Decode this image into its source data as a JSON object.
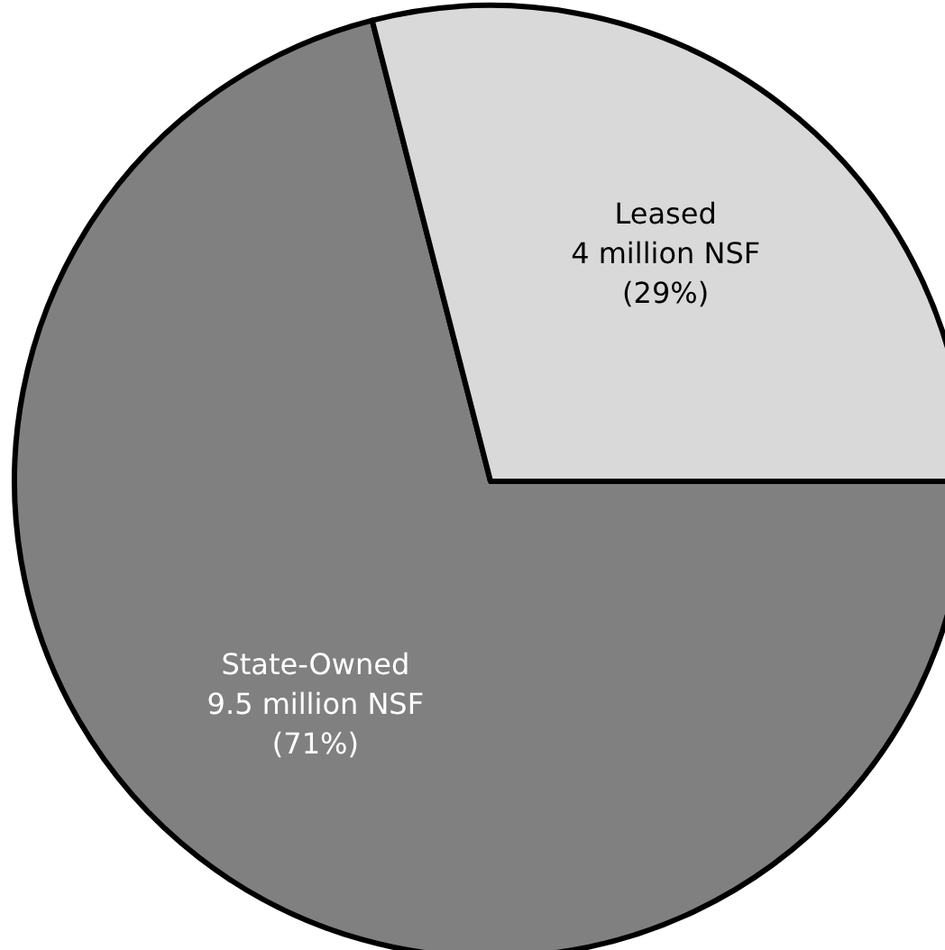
{
  "chart_data": {
    "type": "pie",
    "categories": [
      "State-Owned",
      "Leased"
    ],
    "values": [
      71,
      29
    ],
    "colors": [
      "#808080",
      "#d9d9d9"
    ],
    "value_labels": [
      "9.5 million NSF\n(71%)",
      "4 million NSF\n(29%)"
    ],
    "legend": false
  }
}
